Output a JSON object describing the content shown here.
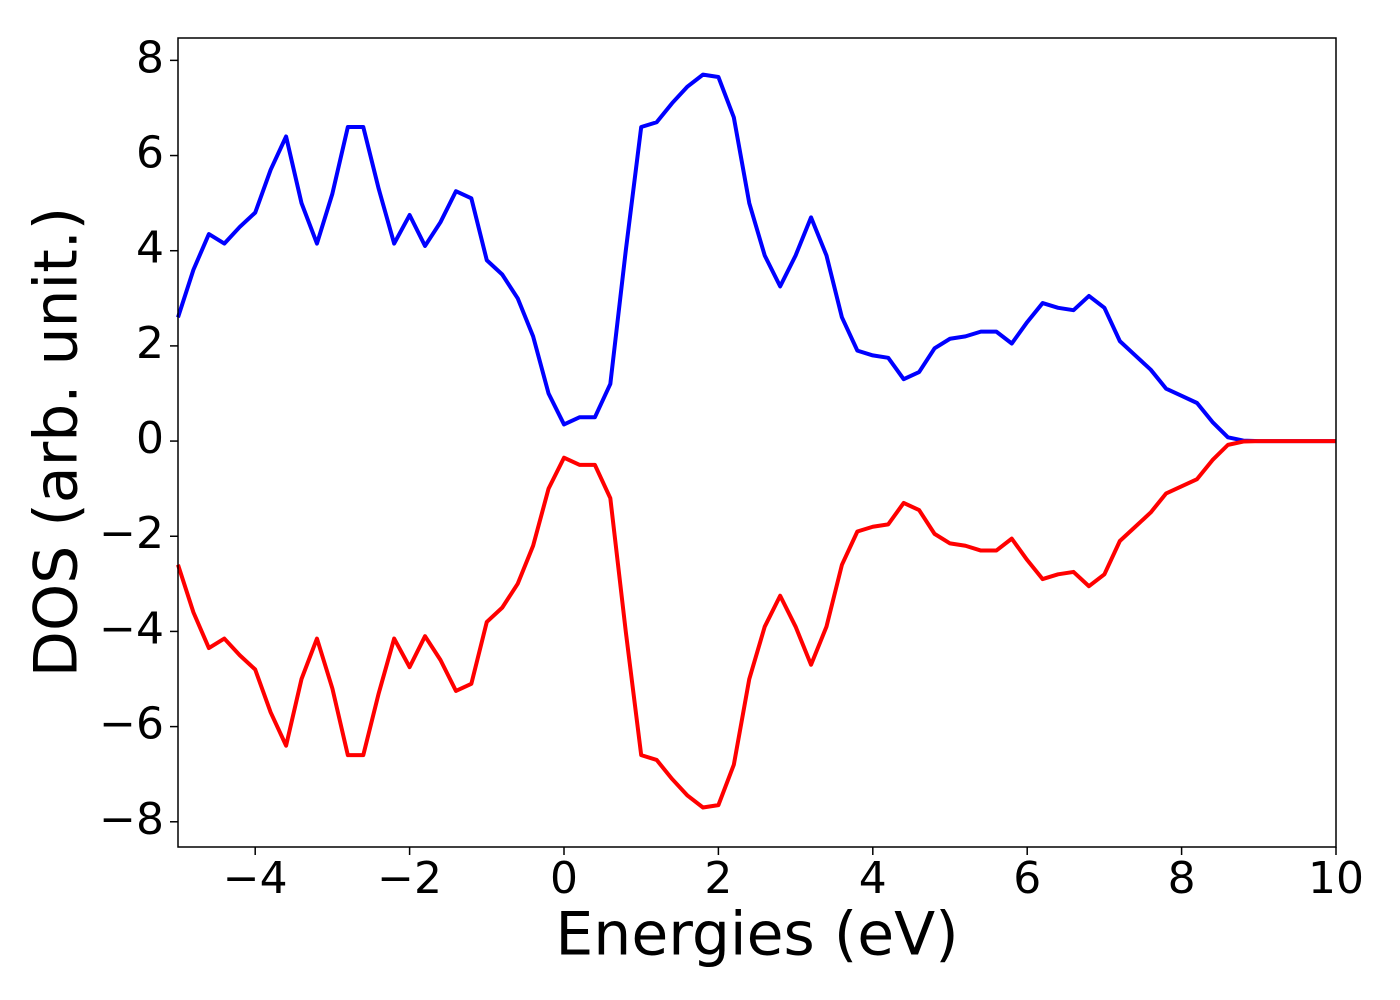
{
  "chart_data": {
    "type": "line",
    "xlabel": "Energies (eV)",
    "ylabel": "DOS (arb. unit.)",
    "x": [
      -5.0,
      -4.8,
      -4.6,
      -4.4,
      -4.2,
      -4.0,
      -3.8,
      -3.6,
      -3.4,
      -3.2,
      -3.0,
      -2.8,
      -2.6,
      -2.4,
      -2.2,
      -2.0,
      -1.8,
      -1.6,
      -1.4,
      -1.2,
      -1.0,
      -0.8,
      -0.6,
      -0.4,
      -0.2,
      0.0,
      0.2,
      0.4,
      0.6,
      0.8,
      1.0,
      1.2,
      1.4,
      1.6,
      1.8,
      2.0,
      2.2,
      2.4,
      2.6,
      2.8,
      3.0,
      3.2,
      3.4,
      3.6,
      3.8,
      4.0,
      4.2,
      4.4,
      4.6,
      4.8,
      5.0,
      5.2,
      5.4,
      5.6,
      5.8,
      6.0,
      6.2,
      6.4,
      6.6,
      6.8,
      7.0,
      7.2,
      7.4,
      7.6,
      7.8,
      8.0,
      8.2,
      8.4,
      8.6,
      8.8,
      9.0,
      9.5,
      10.0
    ],
    "series": [
      {
        "color": "#0000ff",
        "values": [
          2.6,
          3.6,
          4.35,
          4.15,
          4.5,
          4.8,
          5.7,
          6.4,
          5.0,
          4.15,
          5.2,
          6.6,
          6.6,
          5.3,
          4.15,
          4.75,
          4.1,
          4.6,
          5.25,
          5.1,
          3.8,
          3.5,
          3.0,
          2.2,
          1.0,
          0.35,
          0.5,
          0.5,
          1.2,
          4.0,
          6.6,
          6.7,
          7.1,
          7.45,
          7.7,
          7.65,
          6.8,
          5.0,
          3.9,
          3.25,
          3.9,
          4.7,
          3.9,
          2.6,
          1.9,
          1.8,
          1.75,
          1.3,
          1.45,
          1.95,
          2.15,
          2.2,
          2.3,
          2.3,
          2.05,
          2.5,
          2.9,
          2.8,
          2.75,
          3.05,
          2.8,
          2.1,
          1.8,
          1.5,
          1.1,
          0.95,
          0.8,
          0.4,
          0.08,
          0.01,
          0,
          0,
          0
        ]
      },
      {
        "color": "#ff0000",
        "values": [
          -2.6,
          -3.6,
          -4.35,
          -4.15,
          -4.5,
          -4.8,
          -5.7,
          -6.4,
          -5.0,
          -4.15,
          -5.2,
          -6.6,
          -6.6,
          -5.3,
          -4.15,
          -4.75,
          -4.1,
          -4.6,
          -5.25,
          -5.1,
          -3.8,
          -3.5,
          -3.0,
          -2.2,
          -1.0,
          -0.35,
          -0.5,
          -0.5,
          -1.2,
          -4.0,
          -6.6,
          -6.7,
          -7.1,
          -7.45,
          -7.7,
          -7.65,
          -6.8,
          -5.0,
          -3.9,
          -3.25,
          -3.9,
          -4.7,
          -3.9,
          -2.6,
          -1.9,
          -1.8,
          -1.75,
          -1.3,
          -1.45,
          -1.95,
          -2.15,
          -2.2,
          -2.3,
          -2.3,
          -2.05,
          -2.5,
          -2.9,
          -2.8,
          -2.75,
          -3.05,
          -2.8,
          -2.1,
          -1.8,
          -1.5,
          -1.1,
          -0.95,
          -0.8,
          -0.4,
          -0.08,
          -0.01,
          0,
          0,
          0
        ]
      }
    ],
    "xlim": [
      -5,
      10
    ],
    "xticks": [
      {
        "value": -4,
        "label": "−4"
      },
      {
        "value": -2,
        "label": "−2"
      },
      0,
      2,
      4,
      6,
      8,
      10
    ],
    "ylim": [
      -8.53,
      8.47
    ],
    "yticks": [
      {
        "value": -8,
        "label": "−8"
      },
      {
        "value": -6,
        "label": "−6"
      },
      {
        "value": -4,
        "label": "−4"
      },
      {
        "value": -2,
        "label": "−2"
      },
      0,
      2,
      4,
      6,
      8
    ],
    "grid": false
  }
}
